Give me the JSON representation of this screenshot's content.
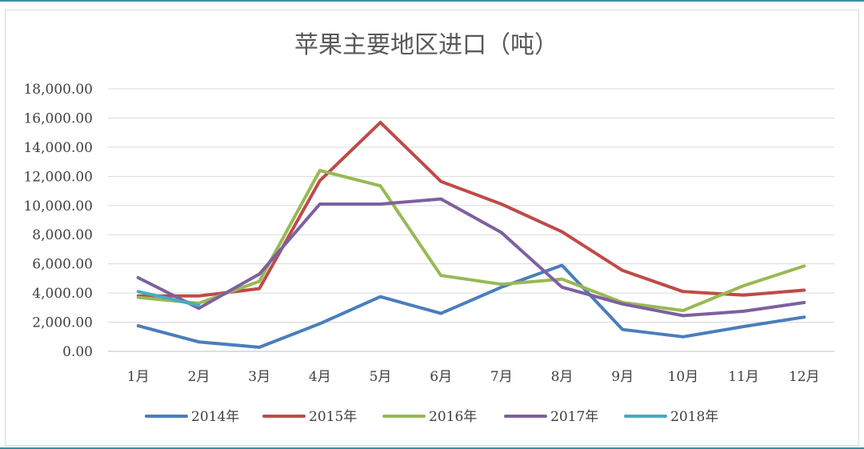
{
  "chart_data": {
    "type": "line",
    "title": "苹果主要地区进口（吨）",
    "xlabel": "",
    "ylabel": "",
    "categories": [
      "1月",
      "2月",
      "3月",
      "4月",
      "5月",
      "6月",
      "7月",
      "8月",
      "9月",
      "10月",
      "11月",
      "12月"
    ],
    "ylim": [
      0,
      18000
    ],
    "yticks": [
      "0.00",
      "2,000.00",
      "4,000.00",
      "6,000.00",
      "8,000.00",
      "10,000.00",
      "12,000.00",
      "14,000.00",
      "16,000.00",
      "18,000.00"
    ],
    "grid": true,
    "legend_position": "bottom",
    "series": [
      {
        "name": "2014年",
        "color": "#4a7ebb",
        "values": [
          1750,
          650,
          280,
          1900,
          3750,
          2600,
          4400,
          5900,
          1500,
          1000,
          1700,
          2350
        ]
      },
      {
        "name": "2015年",
        "color": "#be4b48",
        "values": [
          3800,
          3800,
          4300,
          11700,
          15700,
          11650,
          10100,
          8200,
          5550,
          4100,
          3850,
          4200
        ]
      },
      {
        "name": "2016年",
        "color": "#98b954",
        "values": [
          3700,
          3300,
          4800,
          12400,
          11350,
          5200,
          4600,
          4950,
          3350,
          2800,
          4500,
          5850
        ]
      },
      {
        "name": "2017年",
        "color": "#7d60a0",
        "values": [
          5050,
          2950,
          5300,
          10100,
          10100,
          10450,
          8150,
          4400,
          3250,
          2450,
          2750,
          3350
        ]
      },
      {
        "name": "2018年",
        "color": "#46aac5",
        "values": [
          4100,
          3150,
          null,
          null,
          null,
          null,
          null,
          null,
          null,
          null,
          null,
          null
        ]
      }
    ]
  }
}
